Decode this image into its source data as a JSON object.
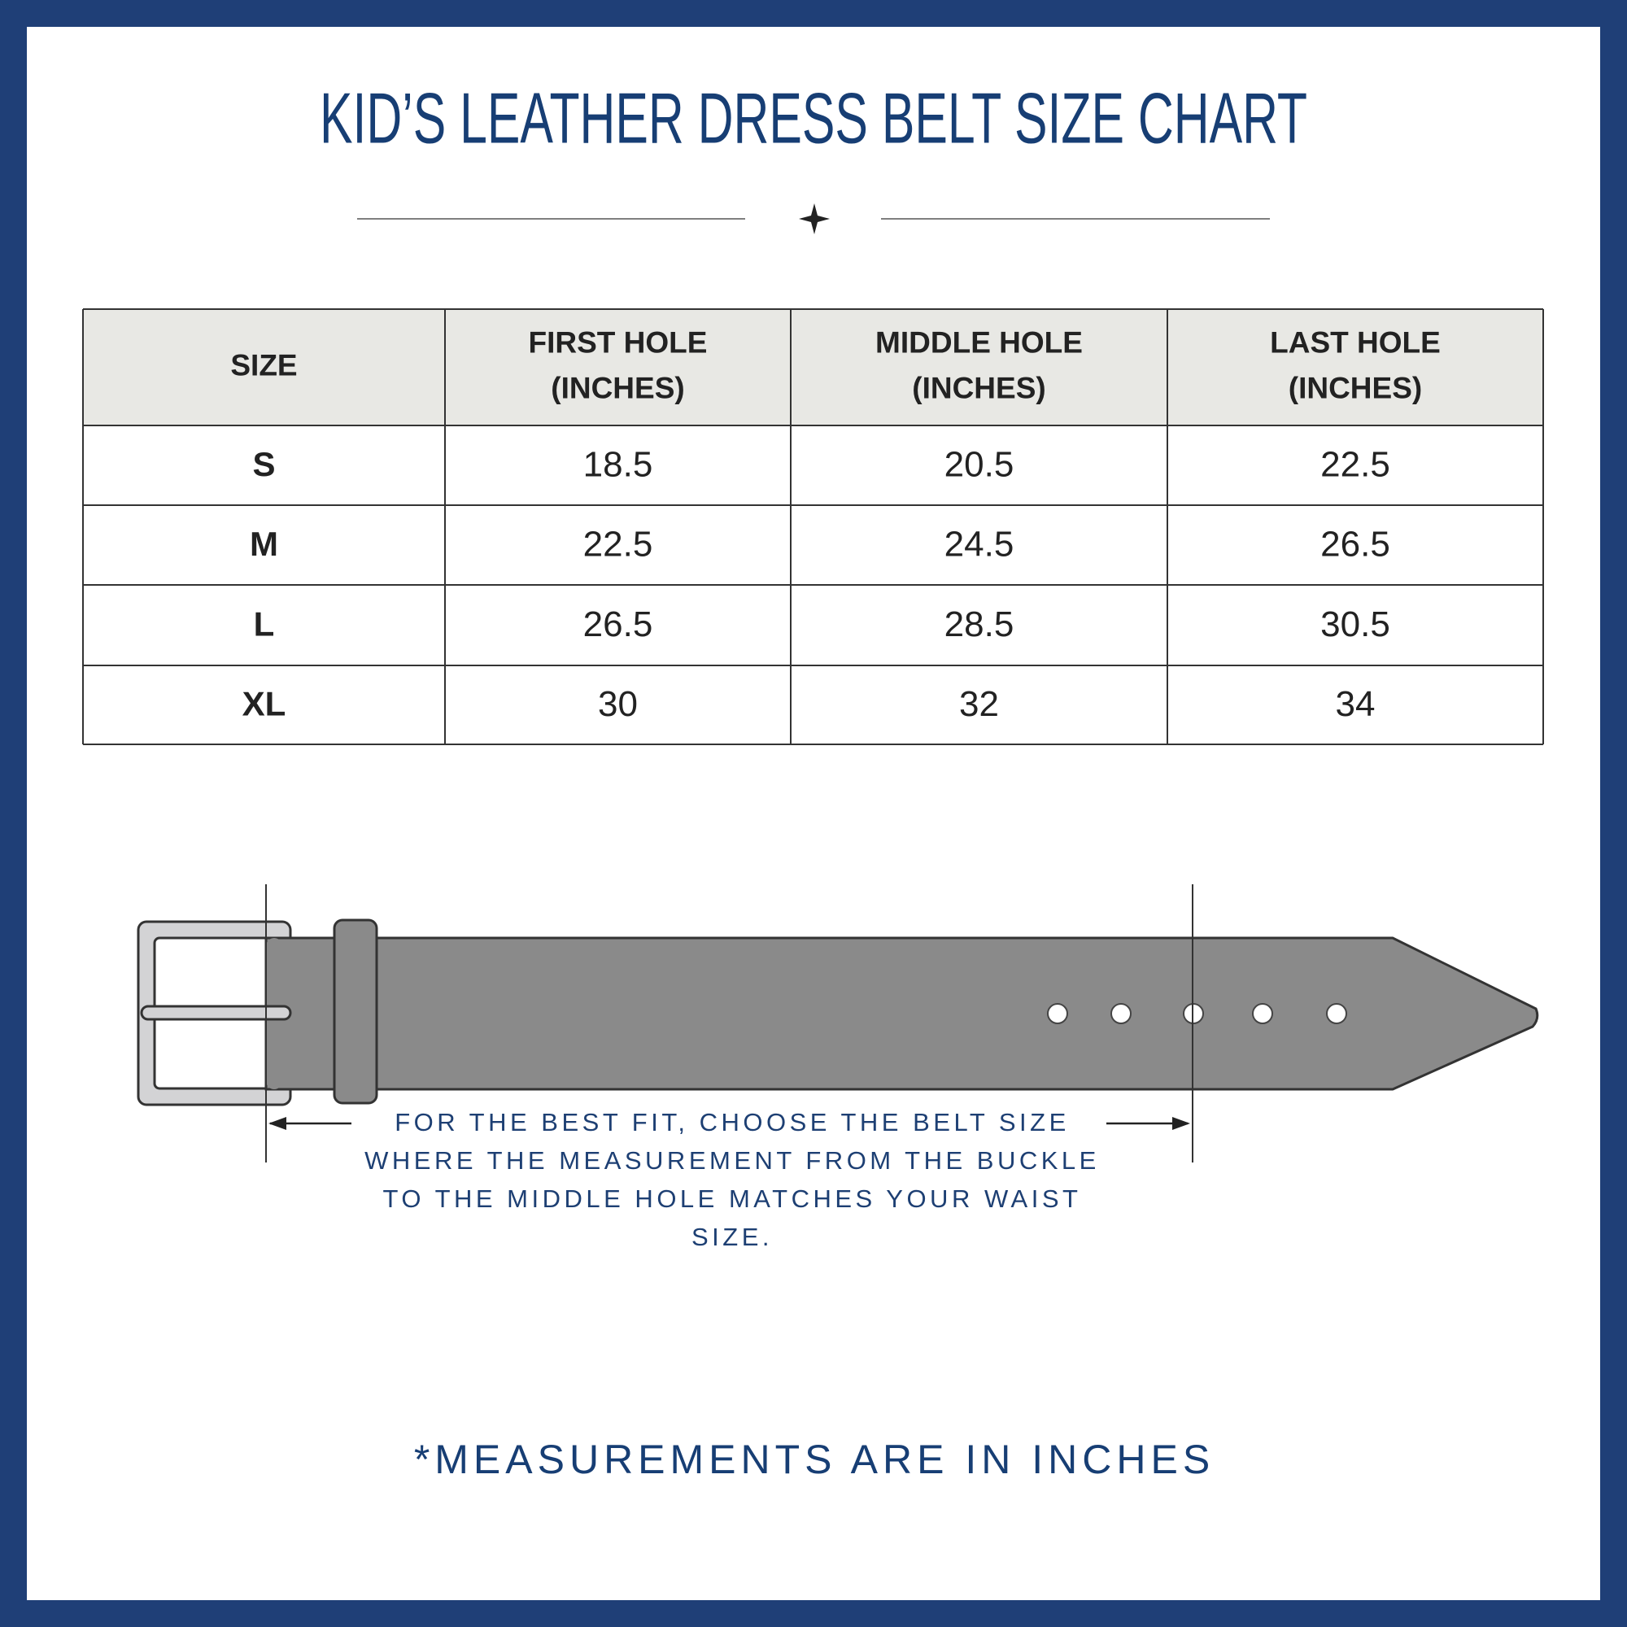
{
  "header": {
    "title": "KID’S LEATHER DRESS BELT SIZE CHART"
  },
  "table": {
    "columns": [
      [
        "SIZE"
      ],
      [
        "FIRST HOLE",
        "(INCHES)"
      ],
      [
        "MIDDLE HOLE",
        "(INCHES)"
      ],
      [
        "LAST HOLE",
        "(INCHES)"
      ]
    ],
    "rows": [
      [
        "S",
        18.5,
        20.5,
        22.5
      ],
      [
        "M",
        22.5,
        24.5,
        26.5
      ],
      [
        "L",
        26.5,
        28.5,
        30.5
      ],
      [
        "XL",
        30,
        32,
        34
      ]
    ]
  },
  "note": [
    "FOR THE BEST FIT, CHOOSE THE BELT SIZE",
    "WHERE THE MEASUREMENT FROM THE BUCKLE",
    "TO THE MIDDLE HOLE MATCHES YOUR WAIST",
    "SIZE."
  ],
  "footer": "*MEASUREMENTS ARE IN INCHES"
}
